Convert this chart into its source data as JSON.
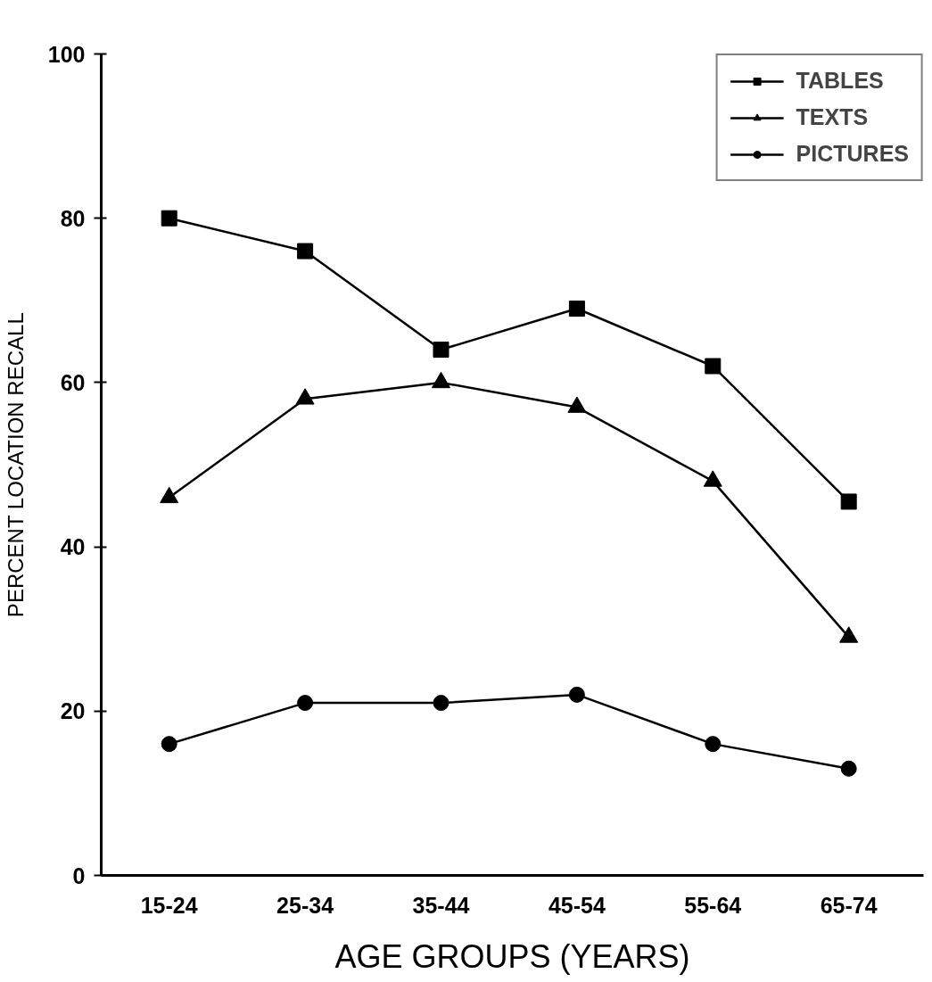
{
  "chart_data": {
    "type": "line",
    "xlabel": "AGE GROUPS (YEARS)",
    "ylabel": "PERCENT LOCATION RECALL",
    "categories": [
      "15-24",
      "25-34",
      "35-44",
      "45-54",
      "55-64",
      "65-74"
    ],
    "series": [
      {
        "name": "TABLES",
        "color": "#000000",
        "marker": "square",
        "values": [
          80,
          76,
          64,
          69,
          62,
          45.5
        ]
      },
      {
        "name": "TEXTS",
        "color": "#000000",
        "marker": "triangle",
        "values": [
          46,
          58,
          60,
          57,
          48,
          29
        ]
      },
      {
        "name": "PICTURES",
        "color": "#000000",
        "marker": "circle",
        "values": [
          16,
          21,
          21,
          22,
          16,
          13
        ]
      }
    ],
    "ylim": [
      0,
      100
    ],
    "yticks": [
      0,
      20,
      40,
      60,
      80,
      100
    ],
    "grid": false,
    "legend": "top right",
    "line_style": "solid"
  }
}
